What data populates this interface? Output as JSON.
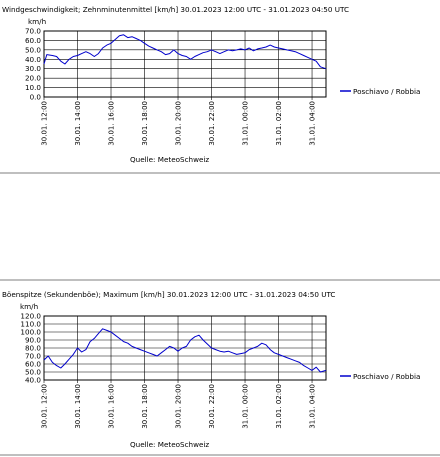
{
  "chart_data": [
    {
      "type": "line",
      "title": "Windgeschwindigkeit; Zehnminutenmittel [km/h]  30.01.2023 12:00 UTC - 31.01.2023 04:50 UTC",
      "ylabel": "km/h",
      "source": "Quelle: MeteoSchweiz",
      "ylim": [
        0,
        70
      ],
      "yticks": [
        "0.0",
        "10.0",
        "20.0",
        "30.0",
        "40.0",
        "50.0",
        "60.0",
        "70.0"
      ],
      "xlim": [
        0,
        16.8333
      ],
      "xticks": [
        "30.01. 12:00",
        "30.01. 14:00",
        "30.01. 16:00",
        "30.01. 18:00",
        "30.01. 20:00",
        "30.01. 22:00",
        "31.01. 00:00",
        "31.01. 02:00",
        "31.01. 04:00"
      ],
      "series": [
        {
          "name": "Poschiavo / Robbia",
          "color": "#0000cc",
          "x": [
            0.0,
            0.17,
            0.5,
            0.75,
            1.0,
            1.25,
            1.5,
            1.75,
            2.0,
            2.25,
            2.5,
            2.75,
            3.0,
            3.25,
            3.5,
            3.75,
            4.0,
            4.25,
            4.5,
            4.75,
            5.0,
            5.25,
            5.5,
            5.75,
            6.0,
            6.25,
            6.5,
            6.75,
            7.0,
            7.25,
            7.5,
            7.75,
            8.0,
            8.25,
            8.5,
            8.75,
            9.0,
            9.25,
            9.5,
            9.75,
            10.0,
            10.25,
            10.5,
            10.75,
            11.0,
            11.25,
            11.5,
            11.75,
            12.0,
            12.25,
            12.5,
            12.75,
            13.0,
            13.25,
            13.5,
            13.75,
            14.0,
            14.25,
            14.5,
            14.75,
            15.0,
            15.25,
            15.5,
            15.75,
            16.0,
            16.25,
            16.5,
            16.83
          ],
          "values": [
            35,
            45,
            44,
            43,
            38,
            35,
            40,
            43,
            44,
            46,
            48,
            46,
            43,
            46,
            52,
            55,
            57,
            61,
            65,
            66,
            63,
            64,
            62,
            60,
            57,
            54,
            52,
            50,
            48,
            45,
            46,
            50,
            46,
            44,
            43,
            40,
            43,
            45,
            47,
            48,
            50,
            48,
            46,
            48,
            50,
            49,
            50,
            51,
            50,
            52,
            49,
            51,
            52,
            53,
            55,
            53,
            52,
            51,
            50,
            49,
            48,
            46,
            44,
            42,
            40,
            38,
            32,
            30
          ]
        }
      ]
    },
    {
      "type": "line",
      "title": "Böenspitze (Sekundenböe); Maximum [km/h]  30.01.2023 12:00 UTC - 31.01.2023 04:50 UTC",
      "ylabel": "km/h",
      "source": "Quelle: MeteoSchweiz",
      "ylim": [
        40,
        120
      ],
      "yticks": [
        "40.0",
        "50.0",
        "60.0",
        "70.0",
        "80.0",
        "90.0",
        "100.0",
        "110.0",
        "120.0"
      ],
      "xlim": [
        0,
        16.8333
      ],
      "xticks": [
        "30.01. 12:00",
        "30.01. 14:00",
        "30.01. 16:00",
        "30.01. 18:00",
        "30.01. 20:00",
        "30.01. 22:00",
        "31.01. 00:00",
        "31.01. 02:00",
        "31.01. 04:00"
      ],
      "series": [
        {
          "name": "Poschiavo / Robbia",
          "color": "#0000cc",
          "x": [
            0.0,
            0.25,
            0.5,
            0.75,
            1.0,
            1.25,
            1.5,
            1.75,
            2.0,
            2.25,
            2.5,
            2.75,
            3.0,
            3.25,
            3.5,
            3.75,
            4.0,
            4.25,
            4.5,
            4.75,
            5.0,
            5.25,
            5.5,
            5.75,
            6.0,
            6.25,
            6.5,
            6.75,
            7.0,
            7.25,
            7.5,
            7.75,
            8.0,
            8.25,
            8.5,
            8.75,
            9.0,
            9.25,
            9.5,
            9.75,
            10.0,
            10.25,
            10.5,
            10.75,
            11.0,
            11.25,
            11.5,
            11.75,
            12.0,
            12.25,
            12.5,
            12.75,
            13.0,
            13.25,
            13.5,
            13.75,
            14.0,
            14.25,
            14.5,
            14.75,
            15.0,
            15.25,
            15.5,
            15.75,
            16.0,
            16.25,
            16.5,
            16.83
          ],
          "values": [
            65,
            70,
            62,
            58,
            55,
            60,
            66,
            72,
            80,
            75,
            78,
            88,
            92,
            98,
            104,
            102,
            100,
            96,
            92,
            88,
            86,
            82,
            80,
            78,
            76,
            74,
            72,
            70,
            74,
            78,
            82,
            80,
            76,
            80,
            82,
            90,
            94,
            96,
            90,
            85,
            80,
            78,
            76,
            75,
            76,
            74,
            72,
            73,
            74,
            78,
            80,
            82,
            86,
            84,
            78,
            74,
            72,
            70,
            68,
            66,
            64,
            62,
            58,
            55,
            52,
            56,
            50,
            52
          ]
        }
      ]
    }
  ]
}
